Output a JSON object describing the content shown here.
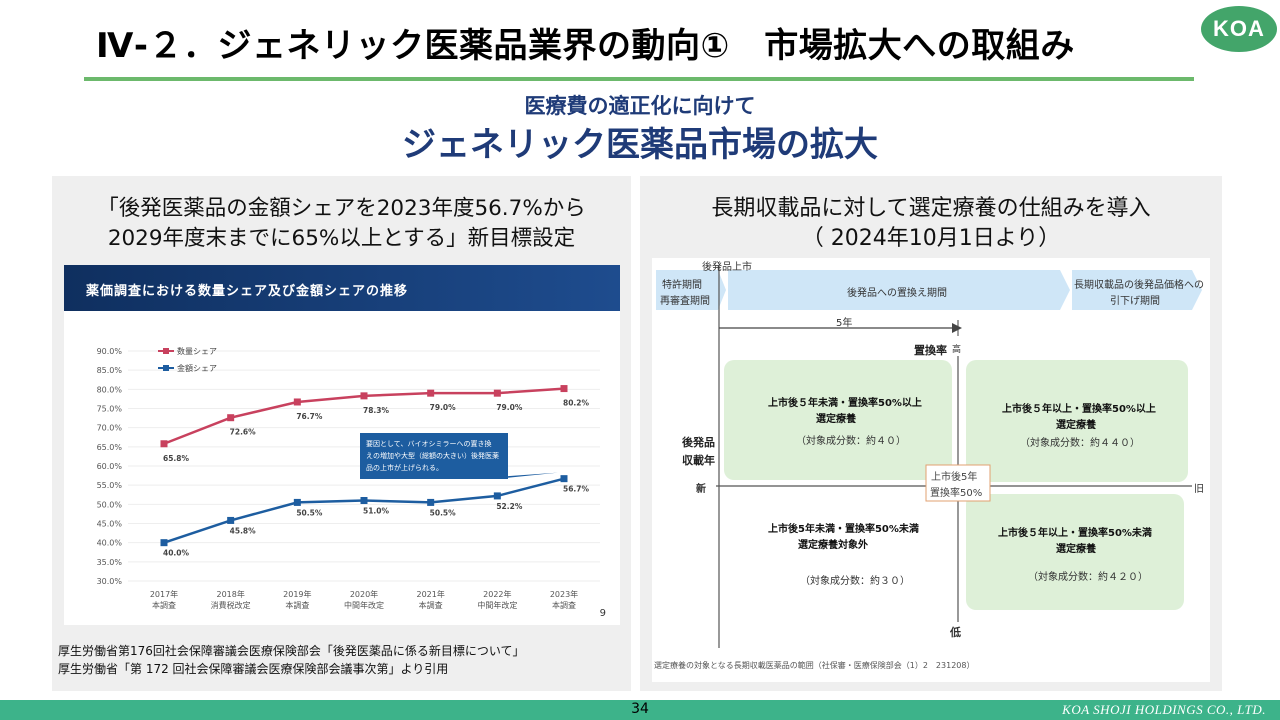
{
  "header": {
    "title": "Ⅳ-２．ジェネリック医薬品業界の動向①　市場拡大への取組み",
    "logo": "KOA",
    "subtitle": "医療費の適正化に向けて",
    "headline": "ジェネリック医薬品市場の拡大"
  },
  "left_panel": {
    "heading_line1": "「後発医薬品の金額シェアを2023年度56.7%から",
    "heading_line2": "2029年度末までに65%以上とする」新目標設定",
    "chart_banner": "薬価調査における数量シェア及び金額シェアの推移",
    "chart_page_no": "9",
    "callout": [
      "要因として、バイオシミラーへの置き換",
      "えの増加や大型（総額の大きい）後発医薬",
      "品の上市が上げられる。"
    ],
    "source_line1": "厚生労働省第176回社会保障審議会医療保険部会「後発医薬品に係る新目標について」",
    "source_line2": "厚生労働省「第 172 回社会保障審議会医療保険部会議事次第」より引用"
  },
  "chart_data": {
    "type": "line",
    "title": "薬価調査における数量シェア及び金額シェアの推移",
    "categories": [
      "2017年\n本調査",
      "2018年\n消費税改定",
      "2019年\n本調査",
      "2020年\n中間年改定",
      "2021年\n本調査",
      "2022年\n中間年改定",
      "2023年\n本調査"
    ],
    "ylim": [
      30,
      90
    ],
    "yticks": [
      "30.0%",
      "35.0%",
      "40.0%",
      "45.0%",
      "50.0%",
      "55.0%",
      "60.0%",
      "65.0%",
      "70.0%",
      "75.0%",
      "80.0%",
      "85.0%",
      "90.0%"
    ],
    "legend": "top-left",
    "series": [
      {
        "name": "数量シェア",
        "color": "#c8415e",
        "values": [
          65.8,
          72.6,
          76.7,
          78.3,
          79.0,
          79.0,
          80.2
        ],
        "labels": [
          "65.8%",
          "72.6%",
          "76.7%",
          "78.3%",
          "79.0%",
          "79.0%",
          "80.2%"
        ]
      },
      {
        "name": "金額シェア",
        "color": "#1d5da0",
        "values": [
          40.0,
          45.8,
          50.5,
          51.0,
          50.5,
          52.2,
          56.7
        ],
        "labels": [
          "40.0%",
          "45.8%",
          "50.5%",
          "51.0%",
          "50.5%",
          "52.2%",
          "56.7%"
        ]
      }
    ]
  },
  "right_panel": {
    "heading_line1": "長期収載品に対して選定療養の仕組みを導入",
    "heading_line2": "（ 2024年10月1日より）",
    "diagram": {
      "launch": "後発品上市",
      "period_patent_1": "特許期間",
      "period_patent_2": "再審査期間",
      "period_replace": "後発品への置換え期間",
      "period_reduce_1": "長期収載品の後発品価格への",
      "period_reduce_2": "引下げ期間",
      "five_years": "5年",
      "axis_rate": "置換率",
      "axis_high": "高",
      "axis_low": "低",
      "axis_years_1": "後発品",
      "axis_years_2": "収載年",
      "axis_new": "新",
      "axis_old": "旧",
      "center_1": "上市後5年",
      "center_2": "置換率50%",
      "q_tl": [
        "上市後５年未満・置換率50%以上",
        "選定療養",
        "（対象成分数：約４０）"
      ],
      "q_tr": [
        "上市後５年以上・置換率50%以上",
        "選定療養",
        "（対象成分数：約４４０）"
      ],
      "q_bl": [
        "上市後5年未満・置換率50%未満",
        "選定療養対象外",
        "（対象成分数：約３０）"
      ],
      "q_br": [
        "上市後５年以上・置換率50%未満",
        "選定療養",
        "（対象成分数：約４２０）"
      ],
      "caption": "選定療養の対象となる長期収載医薬品の範囲（社保審・医療保険部会（1）2　231208）"
    }
  },
  "footer": {
    "page": "34",
    "company": "KOA SHOJI HOLDINGS CO., LTD."
  },
  "colors": {
    "title_rule": "#6cb96c",
    "brand_green": "#3db38a",
    "navy": "#1f3b78",
    "panel_bg": "#efefef"
  }
}
